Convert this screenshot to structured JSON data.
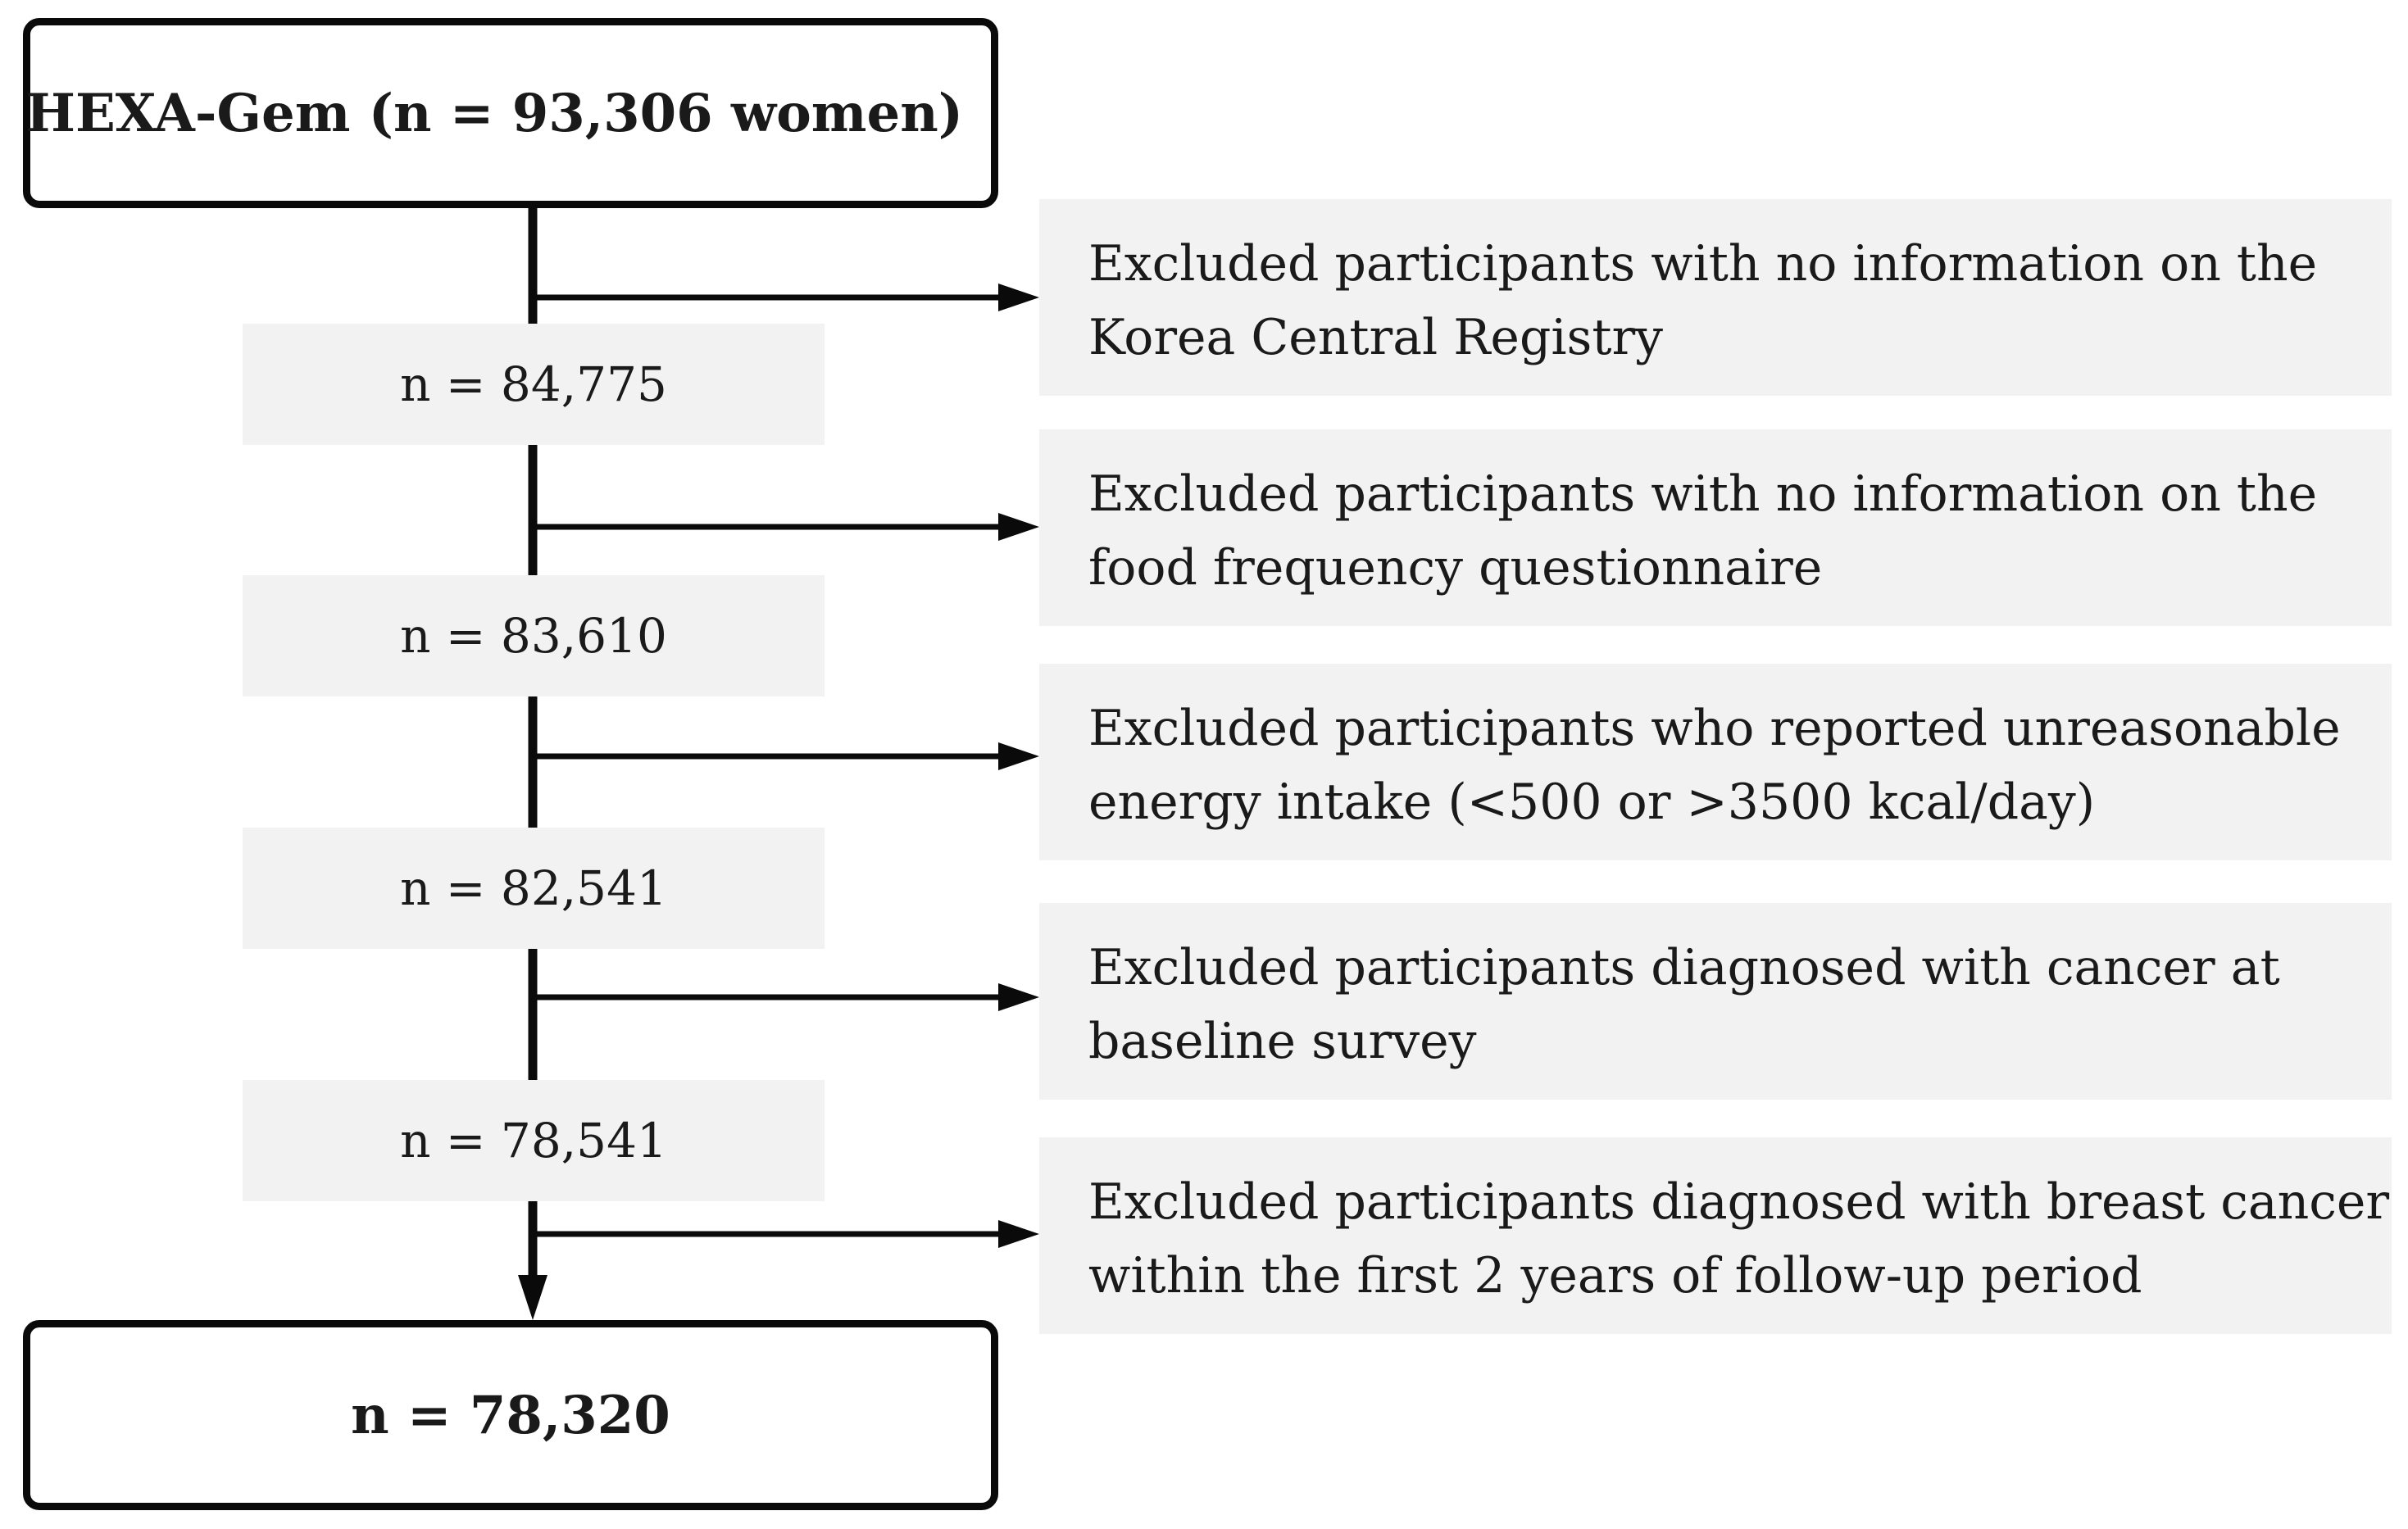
{
  "start": {
    "label": "HEXA-Gem (n = 93,306 women)"
  },
  "end": {
    "label": "n = 78,320"
  },
  "counts": [
    "n = 84,775",
    "n = 83,610",
    "n = 82,541",
    "n = 78,541"
  ],
  "exclusions": [
    {
      "line1": "Excluded participants with no information on the",
      "line2": "Korea Central Registry"
    },
    {
      "line1": "Excluded participants with no information on the",
      "line2": "food frequency questionnaire"
    },
    {
      "line1": "Excluded participants who reported unreasonable",
      "line2": "energy intake (<500 or >3500 kcal/day)"
    },
    {
      "line1": "Excluded participants diagnosed with cancer at",
      "line2": "baseline survey"
    },
    {
      "line1": "Excluded participants diagnosed with breast cancer",
      "line2": "within the first 2 years of follow-up period"
    }
  ],
  "colors": {
    "line": "#0a0a0a",
    "panel": "#f2f2f2"
  }
}
